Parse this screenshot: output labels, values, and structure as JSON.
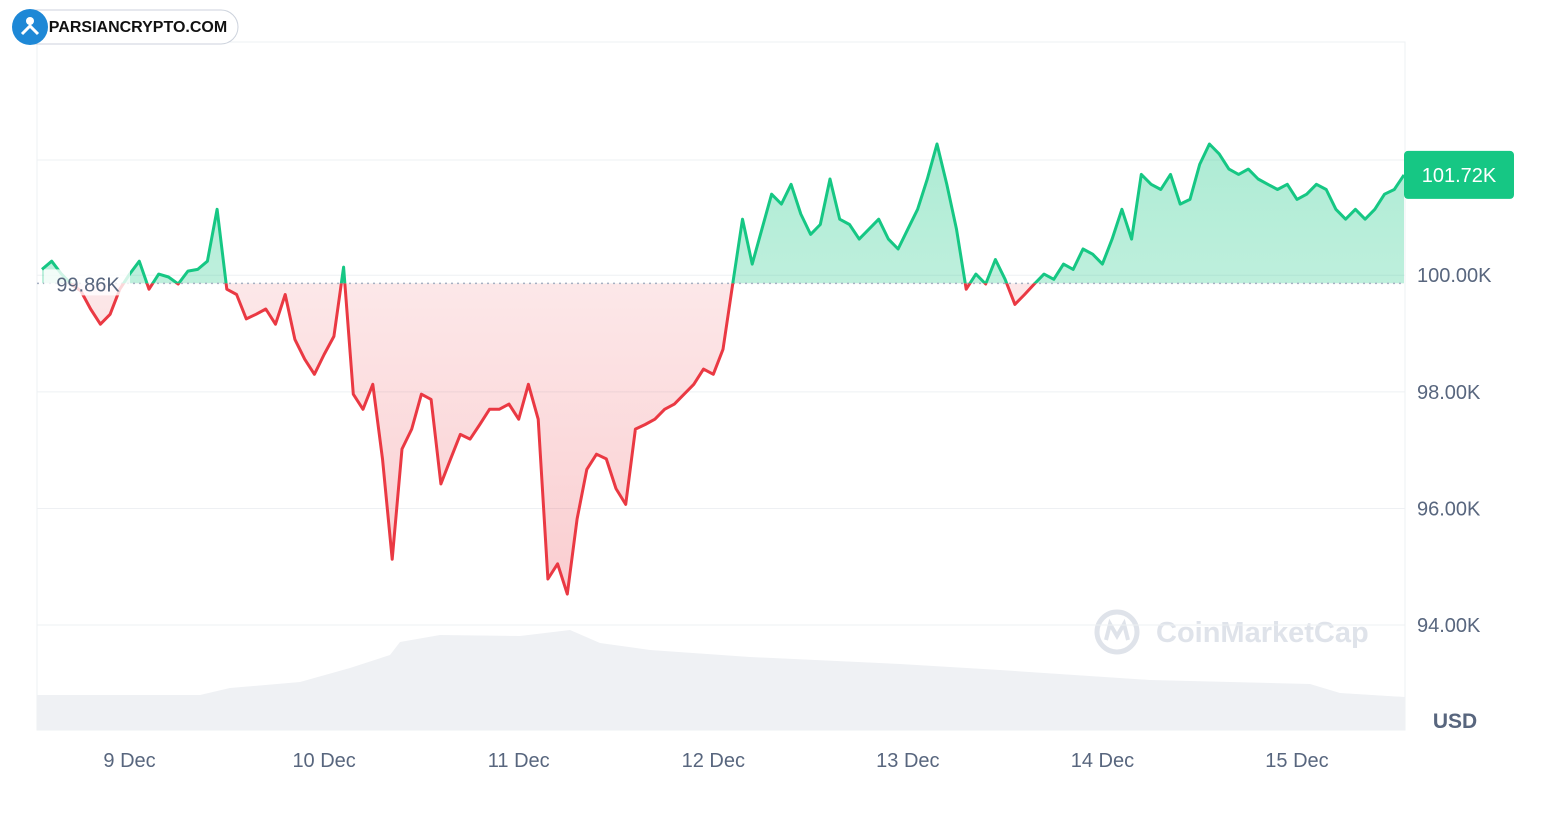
{
  "brand": "PARSIANCRYPTO.COM",
  "watermark": "CoinMarketCap",
  "chart_data": {
    "type": "baseline-line",
    "axis_unit": "USD",
    "categories": [
      null,
      null,
      null,
      null,
      null,
      null,
      null,
      null,
      null,
      "9 Dec",
      null,
      null,
      null,
      null,
      null,
      null,
      null,
      null,
      null,
      null,
      null,
      null,
      null,
      null,
      null,
      null,
      null,
      null,
      null,
      "10 Dec",
      null,
      null,
      null,
      null,
      null,
      null,
      null,
      null,
      null,
      null,
      null,
      null,
      null,
      null,
      null,
      null,
      null,
      null,
      null,
      "11 Dec",
      null,
      null,
      null,
      null,
      null,
      null,
      null,
      null,
      null,
      null,
      null,
      null,
      null,
      null,
      null,
      null,
      null,
      null,
      null,
      "12 Dec",
      null,
      null,
      null,
      null,
      null,
      null,
      null,
      null,
      null,
      null,
      null,
      null,
      null,
      null,
      null,
      null,
      null,
      null,
      null,
      "13 Dec",
      null,
      null,
      null,
      null,
      null,
      null,
      null,
      null,
      null,
      null,
      null,
      null,
      null,
      null,
      null,
      null,
      null,
      null,
      null,
      "14 Dec",
      null,
      null,
      null,
      null,
      null,
      null,
      null,
      null,
      null,
      null,
      null,
      null,
      null,
      null,
      null,
      null,
      null,
      null,
      null,
      "15 Dec",
      null,
      null,
      null,
      null,
      null,
      null,
      null,
      null,
      null,
      null,
      null
    ],
    "values": [
      100.1,
      100.24,
      100.02,
      99.85,
      99.73,
      99.42,
      99.16,
      99.33,
      99.76,
      100.02,
      100.24,
      99.76,
      100.02,
      99.97,
      99.85,
      100.07,
      100.1,
      100.24,
      101.13,
      99.76,
      99.67,
      99.25,
      99.33,
      99.42,
      99.16,
      99.67,
      98.9,
      98.56,
      98.3,
      98.64,
      98.95,
      100.14,
      97.96,
      97.7,
      98.13,
      96.85,
      95.13,
      97.02,
      97.36,
      97.96,
      97.87,
      96.42,
      96.85,
      97.27,
      97.19,
      97.44,
      97.7,
      97.7,
      97.79,
      97.53,
      98.13,
      97.53,
      94.79,
      95.05,
      94.53,
      95.82,
      96.67,
      96.93,
      96.85,
      96.34,
      96.07,
      97.36,
      97.44,
      97.53,
      97.7,
      97.79,
      97.96,
      98.13,
      98.39,
      98.3,
      98.73,
      99.85,
      100.96,
      100.19,
      100.79,
      101.39,
      101.22,
      101.56,
      101.05,
      100.7,
      100.87,
      101.65,
      100.96,
      100.87,
      100.62,
      100.79,
      100.96,
      100.62,
      100.45,
      100.79,
      101.13,
      101.65,
      102.25,
      101.56,
      100.79,
      99.76,
      100.02,
      99.85,
      100.27,
      99.93,
      99.5,
      99.67,
      99.85,
      100.02,
      99.93,
      100.19,
      100.1,
      100.45,
      100.36,
      100.19,
      100.62,
      101.13,
      100.62,
      101.73,
      101.56,
      101.47,
      101.73,
      101.22,
      101.3,
      101.9,
      102.25,
      102.08,
      101.82,
      101.73,
      101.82,
      101.65,
      101.56,
      101.47,
      101.56,
      101.3,
      101.39,
      101.56,
      101.47,
      101.13,
      100.96,
      101.13,
      100.96,
      101.13,
      101.39,
      101.47,
      101.72
    ],
    "value_labels": [
      null,
      null,
      null,
      null,
      null,
      null,
      null,
      null,
      null,
      null,
      null,
      null,
      null,
      null,
      null,
      null,
      null,
      null,
      null,
      null,
      null,
      null,
      null,
      null,
      null,
      null,
      null,
      null,
      null,
      null,
      null,
      null,
      null,
      null,
      null,
      null,
      null,
      null,
      null,
      null,
      null,
      null,
      null,
      null,
      null,
      null,
      null,
      null,
      null,
      null,
      null,
      null,
      null,
      null,
      null,
      null,
      null,
      null,
      null,
      null,
      null,
      null,
      null,
      null,
      null,
      null,
      null,
      null,
      null,
      null,
      null,
      null,
      null,
      null,
      null,
      null,
      null,
      null,
      null,
      null,
      null,
      null,
      null,
      null,
      null,
      null,
      null,
      null,
      null,
      null,
      null,
      null,
      null,
      null,
      null,
      null,
      null,
      null,
      null,
      null,
      null,
      null,
      null,
      null,
      null,
      null,
      null,
      null,
      null,
      null,
      null,
      null,
      null,
      null,
      null,
      null,
      null,
      null,
      null,
      null,
      null,
      null,
      null,
      null,
      null,
      null,
      null,
      null,
      null,
      null,
      null,
      null,
      null,
      null,
      null,
      null,
      null,
      null,
      null,
      null,
      "101.72K"
    ],
    "baseline": {
      "value": 99.86,
      "label": "99.86K"
    },
    "up_color": "#16c784",
    "down_color": "#ea3943",
    "ylim": [
      92.2,
      104
    ],
    "yticks": [
      {
        "value": 94,
        "label": "94.00K"
      },
      {
        "value": 96,
        "label": "96.00K"
      },
      {
        "value": 98,
        "label": "98.00K"
      },
      {
        "value": 100,
        "label": "100.00K"
      }
    ],
    "grid": true
  }
}
